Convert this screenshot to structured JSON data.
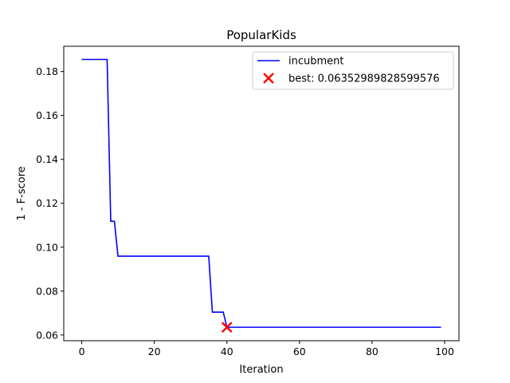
{
  "chart_data": {
    "type": "line",
    "title": "PopularKids",
    "xlabel": "Iteration",
    "ylabel": "1 - F-score",
    "xlim": [
      -4.95,
      103.95
    ],
    "ylim": [
      0.0574,
      0.1915
    ],
    "xticks": [
      0,
      20,
      40,
      60,
      80,
      100
    ],
    "xtick_labels": [
      "0",
      "20",
      "40",
      "60",
      "80",
      "100"
    ],
    "yticks": [
      0.06,
      0.08,
      0.1,
      0.12,
      0.14,
      0.16,
      0.18
    ],
    "ytick_labels": [
      "0.06",
      "0.08",
      "0.10",
      "0.12",
      "0.14",
      "0.16",
      "0.18"
    ],
    "grid": false,
    "legend_position": "upper right",
    "series": [
      {
        "name": "incubment",
        "color": "#0000ff",
        "step": true,
        "points": [
          [
            0,
            0.1855
          ],
          [
            7,
            0.1855
          ],
          [
            8,
            0.1118
          ],
          [
            9,
            0.1118
          ],
          [
            10,
            0.0959
          ],
          [
            35,
            0.0959
          ],
          [
            36,
            0.0704
          ],
          [
            39,
            0.0704
          ],
          [
            40,
            0.06353
          ],
          [
            99,
            0.06353
          ]
        ]
      }
    ],
    "best_marker": {
      "label": "best: 0.06352989828599576",
      "x": 40,
      "y": 0.06352989828599576,
      "color": "#ff0000",
      "marker": "x"
    }
  }
}
